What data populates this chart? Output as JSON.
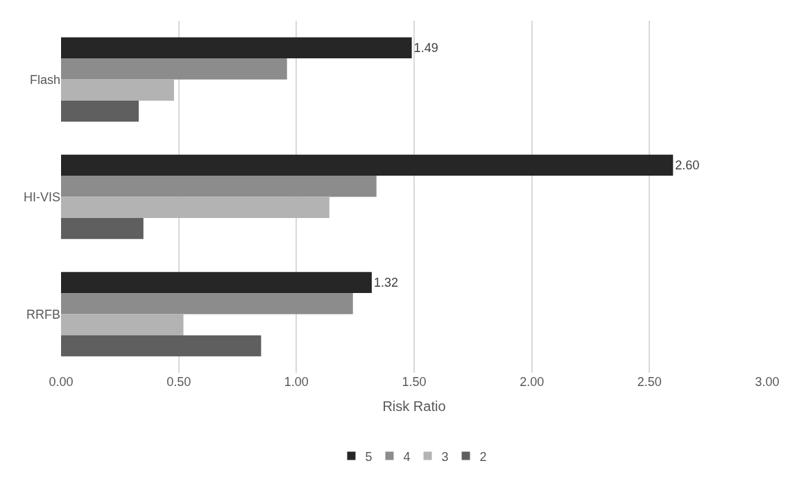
{
  "chart_data": {
    "type": "bar",
    "orientation": "horizontal",
    "xlabel": "Risk Ratio",
    "categories": [
      "Flash",
      "HI-VIS",
      "RRFB"
    ],
    "series": [
      {
        "name": "5",
        "color": "#262626",
        "values": [
          1.49,
          2.6,
          1.32
        ],
        "value_labels": [
          "1.49",
          "2.60",
          "1.32"
        ]
      },
      {
        "name": "4",
        "color": "#8c8c8c",
        "values": [
          0.96,
          1.34,
          1.24
        ]
      },
      {
        "name": "3",
        "color": "#b3b3b3",
        "values": [
          0.48,
          1.14,
          0.52
        ]
      },
      {
        "name": "2",
        "color": "#5f5f5f",
        "values": [
          0.33,
          0.35,
          0.85
        ]
      }
    ],
    "xlim": [
      0,
      3
    ],
    "xticks": [
      {
        "value": 0,
        "label": "0.00"
      },
      {
        "value": 0.5,
        "label": "0.50"
      },
      {
        "value": 1,
        "label": "1.00"
      },
      {
        "value": 1.5,
        "label": "1.50"
      },
      {
        "value": 2,
        "label": "2.00"
      },
      {
        "value": 2.5,
        "label": "2.50"
      },
      {
        "value": 3,
        "label": "3.00"
      }
    ],
    "grid": "x",
    "legend": "bottom"
  }
}
